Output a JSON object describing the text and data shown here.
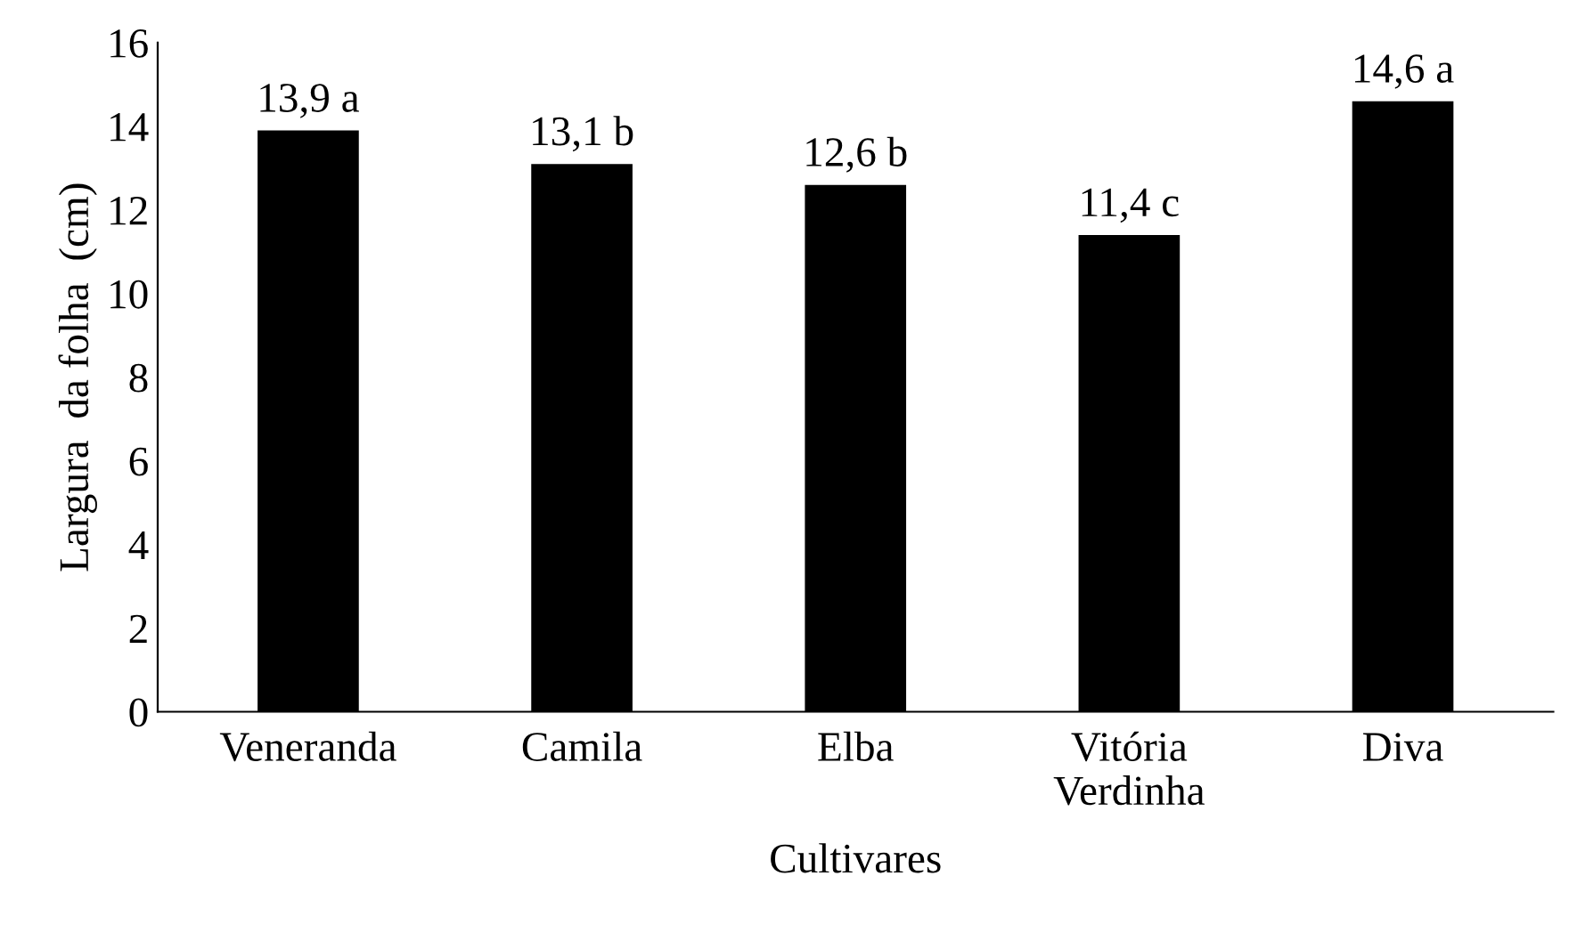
{
  "chart_data": {
    "type": "bar",
    "xlabel": "Cultivares",
    "ylabel": "Largura  da folha  (cm)",
    "categories": [
      "Veneranda",
      "Camila",
      "Elba",
      "Vitória\nVerdinha",
      "Diva"
    ],
    "values": [
      13.9,
      13.1,
      12.6,
      11.4,
      14.6
    ],
    "value_labels": [
      "13,9 a",
      "13,1 b",
      "12,6 b",
      "11,4 c",
      "14,6 a"
    ],
    "color": "#000000",
    "ylim": [
      0,
      16
    ],
    "yticks": [
      0,
      2,
      4,
      6,
      8,
      10,
      12,
      14,
      16
    ],
    "grid": false,
    "legend": false
  }
}
